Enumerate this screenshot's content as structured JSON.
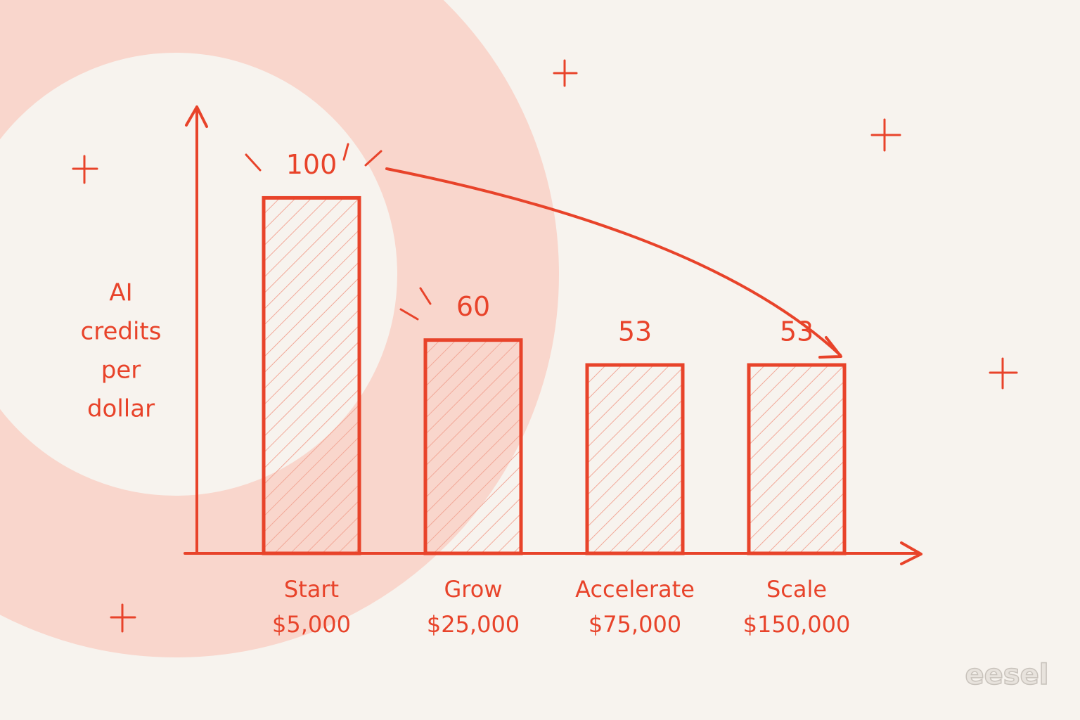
{
  "chart_data": {
    "type": "bar",
    "y_label": [
      "AI",
      "credits",
      "per",
      "dollar"
    ],
    "categories": [
      [
        "Start",
        "$5,000"
      ],
      [
        "Grow",
        "$25,000"
      ],
      [
        "Accelerate",
        "$75,000"
      ],
      [
        "Scale",
        "$150,000"
      ]
    ],
    "values": [
      100,
      60,
      53,
      53
    ],
    "color": "#e8432a",
    "ylim": [
      0,
      126
    ],
    "brand": "eesel"
  }
}
